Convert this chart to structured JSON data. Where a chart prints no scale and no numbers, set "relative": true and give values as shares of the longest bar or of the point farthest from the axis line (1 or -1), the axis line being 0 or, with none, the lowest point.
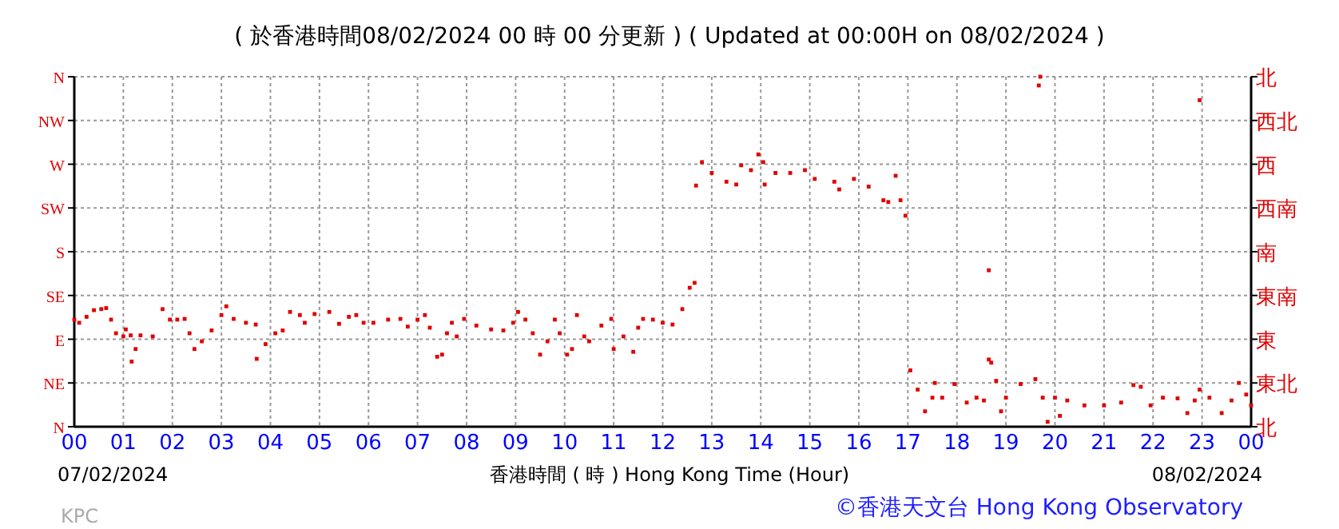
{
  "chart_data": {
    "type": "scatter",
    "title": "( 於香港時間08/02/2024 00 時 00 分更新 ) ( Updated at 00:00H on 08/02/2024 )",
    "xlabel": "香港時間 ( 時 ) Hong Kong Time (Hour)",
    "annotations": [
      "07/02/2024",
      "08/02/2024",
      "KPC",
      "©香港天文台 Hong Kong Observatory"
    ],
    "xlim": [
      0,
      24
    ],
    "xticks": [
      {
        "value": 0,
        "label": "00"
      },
      {
        "value": 1,
        "label": "01"
      },
      {
        "value": 2,
        "label": "02"
      },
      {
        "value": 3,
        "label": "03"
      },
      {
        "value": 4,
        "label": "04"
      },
      {
        "value": 5,
        "label": "05"
      },
      {
        "value": 6,
        "label": "06"
      },
      {
        "value": 7,
        "label": "07"
      },
      {
        "value": 8,
        "label": "08"
      },
      {
        "value": 9,
        "label": "09"
      },
      {
        "value": 10,
        "label": "10"
      },
      {
        "value": 11,
        "label": "11"
      },
      {
        "value": 12,
        "label": "12"
      },
      {
        "value": 13,
        "label": "13"
      },
      {
        "value": 14,
        "label": "14"
      },
      {
        "value": 15,
        "label": "15"
      },
      {
        "value": 16,
        "label": "16"
      },
      {
        "value": 17,
        "label": "17"
      },
      {
        "value": 18,
        "label": "18"
      },
      {
        "value": 19,
        "label": "19"
      },
      {
        "value": 20,
        "label": "20"
      },
      {
        "value": 21,
        "label": "21"
      },
      {
        "value": 22,
        "label": "22"
      },
      {
        "value": 23,
        "label": "23"
      },
      {
        "value": 24,
        "label": "00"
      }
    ],
    "relative": true,
    "y_categories": [
      "N",
      "NW",
      "W",
      "SW",
      "S",
      "SE",
      "E",
      "NE",
      "N"
    ],
    "y2_categories": [
      "北",
      "西北",
      "西",
      "西南",
      "南",
      "東南",
      "東",
      "東北",
      "北"
    ],
    "grid": true,
    "marker": "square",
    "series": [
      {
        "color": "#e00000",
        "x": [
          0.0,
          0.1,
          0.25,
          0.4,
          0.55,
          0.65,
          0.75,
          0.85,
          1.0,
          1.05,
          1.15,
          1.17,
          1.25,
          1.35,
          1.6,
          1.8,
          1.95,
          2.1,
          2.25,
          2.35,
          2.45,
          2.6,
          2.8,
          3.0,
          3.1,
          3.25,
          3.5,
          3.7,
          3.72,
          3.9,
          4.1,
          4.25,
          4.4,
          4.6,
          4.7,
          4.9,
          5.2,
          5.4,
          5.6,
          5.75,
          5.9,
          6.1,
          6.4,
          6.65,
          6.8,
          7.0,
          7.15,
          7.25,
          7.4,
          7.5,
          7.6,
          7.7,
          7.8,
          7.95,
          8.2,
          8.5,
          8.75,
          8.95,
          9.05,
          9.2,
          9.35,
          9.5,
          9.65,
          9.8,
          9.9,
          10.05,
          10.15,
          10.25,
          10.4,
          10.5,
          10.75,
          10.95,
          11.0,
          11.2,
          11.4,
          11.5,
          11.6,
          11.8,
          12.0,
          12.2,
          12.4,
          12.55,
          12.65,
          12.68,
          12.8,
          13.0,
          13.3,
          13.5,
          13.6,
          13.8,
          13.95,
          14.05,
          14.08,
          14.3,
          14.6,
          14.9,
          15.1,
          15.5,
          15.6,
          15.9,
          16.2,
          16.5,
          16.6,
          16.75,
          16.85,
          16.95,
          17.05,
          17.2,
          17.35,
          17.5,
          17.55,
          17.7,
          17.95,
          18.2,
          18.4,
          18.55,
          18.65,
          18.7,
          18.8,
          18.9,
          19.0,
          19.3,
          19.6,
          19.75,
          19.85,
          20.0,
          20.1,
          20.25,
          20.6,
          21.0,
          21.35,
          21.6,
          21.75,
          21.95,
          22.2,
          22.5,
          22.7,
          22.85,
          22.95,
          23.15,
          23.4,
          23.6,
          23.75,
          23.9,
          24.0,
          19.7,
          19.67,
          22.95,
          18.65
        ],
        "values": [
          0.306,
          0.297,
          0.314,
          0.333,
          0.336,
          0.339,
          0.306,
          0.267,
          0.258,
          0.278,
          0.261,
          0.186,
          0.222,
          0.261,
          0.258,
          0.336,
          0.306,
          0.306,
          0.308,
          0.267,
          0.222,
          0.244,
          0.275,
          0.319,
          0.344,
          0.308,
          0.297,
          0.292,
          0.194,
          0.236,
          0.267,
          0.275,
          0.328,
          0.319,
          0.297,
          0.322,
          0.328,
          0.294,
          0.314,
          0.319,
          0.297,
          0.297,
          0.306,
          0.308,
          0.286,
          0.306,
          0.319,
          0.283,
          0.2,
          0.206,
          0.267,
          0.297,
          0.258,
          0.308,
          0.289,
          0.278,
          0.275,
          0.297,
          0.328,
          0.306,
          0.267,
          0.206,
          0.244,
          0.306,
          0.267,
          0.206,
          0.222,
          0.319,
          0.258,
          0.244,
          0.289,
          0.308,
          0.222,
          0.258,
          0.214,
          0.283,
          0.308,
          0.306,
          0.297,
          0.292,
          0.336,
          0.397,
          0.411,
          0.689,
          0.756,
          0.725,
          0.7,
          0.692,
          0.747,
          0.733,
          0.778,
          0.756,
          0.692,
          0.725,
          0.725,
          0.733,
          0.708,
          0.7,
          0.678,
          0.708,
          0.686,
          0.647,
          0.642,
          0.717,
          0.647,
          0.603,
          0.161,
          0.106,
          0.044,
          0.083,
          0.125,
          0.083,
          0.122,
          0.069,
          0.083,
          0.075,
          0.192,
          0.183,
          0.131,
          0.044,
          0.083,
          0.122,
          0.136,
          0.083,
          0.014,
          0.083,
          0.031,
          0.075,
          0.061,
          0.061,
          0.069,
          0.119,
          0.114,
          0.061,
          0.083,
          0.081,
          0.039,
          0.075,
          0.106,
          0.083,
          0.039,
          0.075,
          0.125,
          0.092,
          0.061,
          1,
          0.975,
          0.933,
          0.447
        ]
      }
    ]
  }
}
